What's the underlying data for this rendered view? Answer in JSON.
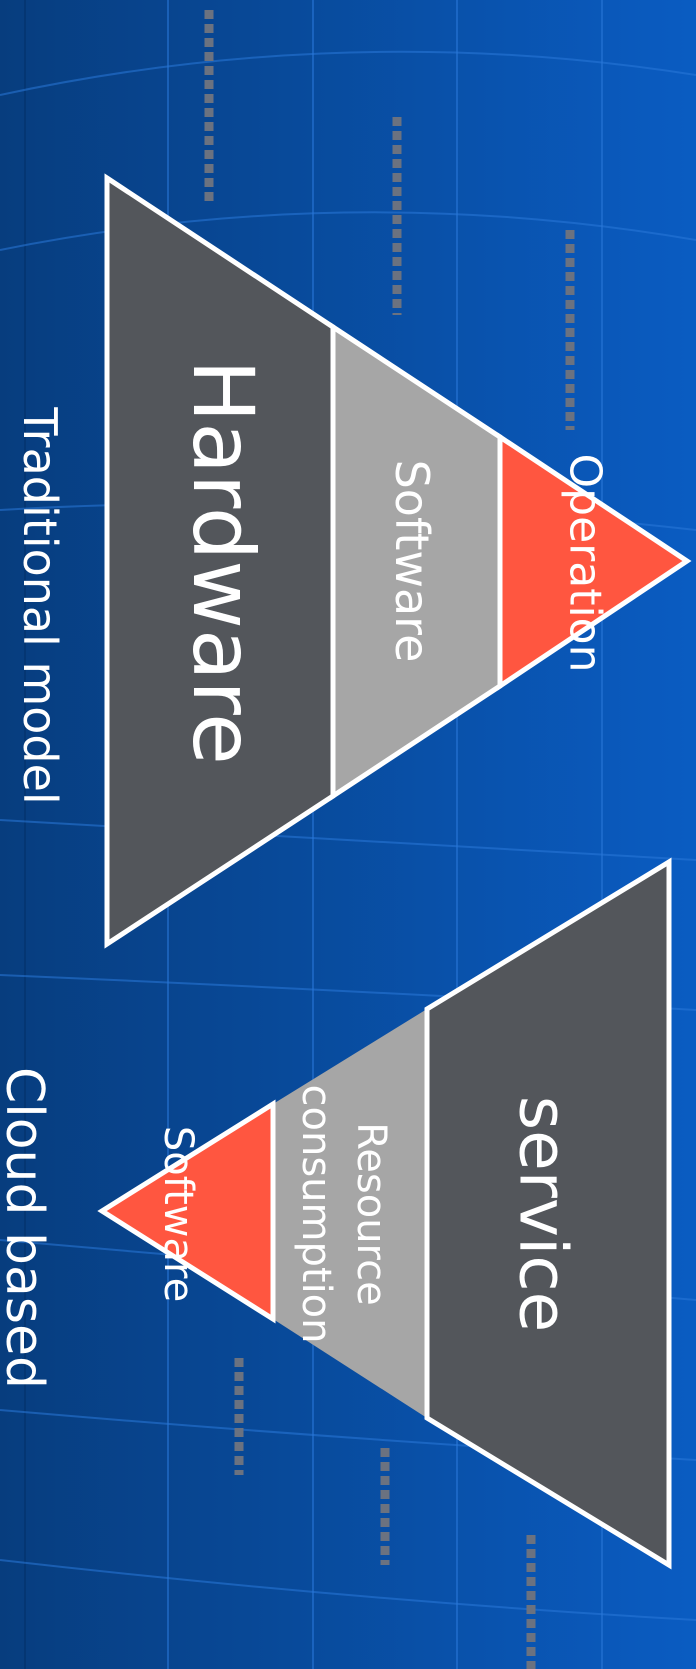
{
  "diagram": {
    "traditional": {
      "caption": "Traditional model",
      "layers": {
        "hardware": "Hardware",
        "software": "Software",
        "operation": "Operation"
      }
    },
    "cloud": {
      "caption": "Cloud based",
      "layers": {
        "service": "service",
        "resource_line1": "Resource",
        "resource_line2": "consumption",
        "software": "Software"
      }
    }
  },
  "colors": {
    "background_dark": "#073d7e",
    "background_light": "#0a5cc2",
    "layer_dark": "#53565b",
    "layer_mid": "#a6a6a6",
    "layer_accent": "#ff5640",
    "outline": "#ffffff",
    "dots": "#6b7280"
  }
}
